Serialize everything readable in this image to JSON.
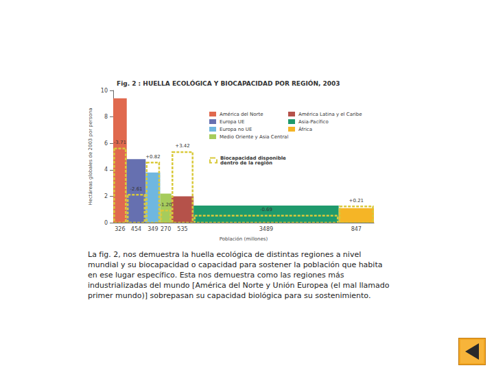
{
  "chart_data": {
    "type": "bar",
    "title": "Fig. 2 : HUELLA ECOLÓGICA Y BIOCAPACIDAD POR REGIÓN, 2003",
    "x_label": "Población (millones)",
    "y_label": "Hectáreas globales de 2003 por persona",
    "series": [
      {
        "name": "América del Norte",
        "color": "#e0694e",
        "population": 326,
        "values": [
          9.4
        ],
        "balance": -3.71,
        "balance_label": "-3.71"
      },
      {
        "name": "Europa UE",
        "color": "#6670b0",
        "population": 454,
        "values": [
          4.8
        ],
        "balance": -2.61,
        "balance_label": "-2.61"
      },
      {
        "name": "Europa no UE",
        "color": "#6fb7e0",
        "population": 349,
        "values": [
          3.8
        ],
        "balance": 0.82,
        "balance_label": "+0.82"
      },
      {
        "name": "Medio Oriente y Asia Central",
        "color": "#a6cc5c",
        "population": 270,
        "values": [
          2.2
        ],
        "balance": -1.2,
        "balance_label": "-1.20"
      },
      {
        "name": "América Latina y el Caribe",
        "color": "#b5524a",
        "population": 535,
        "values": [
          2.0
        ],
        "balance": 3.42,
        "balance_label": "+3.42"
      },
      {
        "name": "Asia-Pacífico",
        "color": "#1f9a6c",
        "population": 3489,
        "values": [
          1.3
        ],
        "balance": -0.69,
        "balance_label": "-0.69"
      },
      {
        "name": "África",
        "color": "#f5b526",
        "population": 847,
        "values": [
          1.1
        ],
        "balance": 0.21,
        "balance_label": "+0.21"
      }
    ],
    "biocapacity": {
      "name": "Biocapacidad disponible dentro de la región",
      "color": "#d9c93a",
      "line_style": "dashed"
    },
    "xlim": [
      0,
      6270
    ],
    "ylim": [
      0,
      10
    ],
    "yticks": [
      0,
      2,
      4,
      6,
      8,
      10
    ],
    "tick_labels": "y",
    "grid": false
  },
  "caption": "La fig. 2, nos demuestra la huella ecológica de distintas regiones a nivel mundial y su biocapacidad o capacidad para sostener la población que habita en ese lugar específico. Esta nos demuestra como las regiones más industrializadas del mundo [América del Norte y Unión Europea (el mal llamado primer mundo)] sobrepasan su capacidad biológica para su sostenimiento."
}
